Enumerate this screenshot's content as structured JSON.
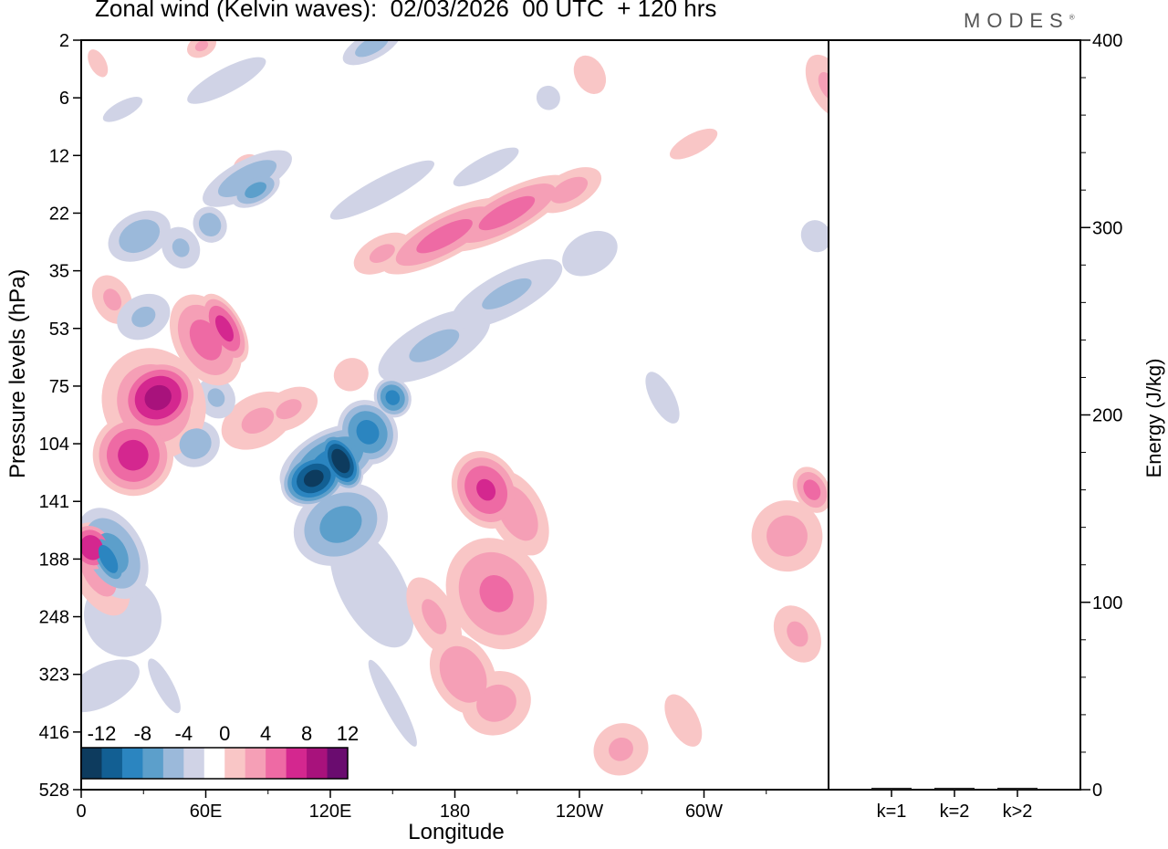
{
  "header": {
    "title": "Zonal wind (Kelvin waves):  02/03/2026  00 UTC  + 120 hrs",
    "brand": "MODES",
    "brand_mark": "®"
  },
  "chart_data": [
    {
      "type": "heatmap",
      "title": "Zonal wind (Kelvin waves):  02/03/2026  00 UTC  + 120 hrs",
      "xlabel": "Longitude",
      "ylabel": "Pressure levels (hPa)",
      "x_ticks": [
        "0",
        "60E",
        "120E",
        "180",
        "120W",
        "60W"
      ],
      "x_tick_values": [
        0,
        60,
        120,
        180,
        240,
        300
      ],
      "xlim": [
        0,
        360
      ],
      "y_ticks": [
        "2",
        "6",
        "12",
        "22",
        "35",
        "53",
        "75",
        "104",
        "141",
        "188",
        "248",
        "323",
        "416",
        "528"
      ],
      "colorbar": {
        "labels": [
          "-12",
          "-8",
          "-4",
          "0",
          "4",
          "8",
          "12"
        ],
        "levels": [
          -14,
          -12,
          -10,
          -8,
          -6,
          -4,
          -2,
          2,
          4,
          6,
          8,
          10,
          12,
          14
        ],
        "colors": [
          "#0d3b5e",
          "#125f93",
          "#2b85c0",
          "#5c9fcb",
          "#9bb9da",
          "#d0d3e6",
          "#ffffff",
          "#f9c6c6",
          "#f59fb6",
          "#ee6aa4",
          "#d4278f",
          "#a8127c",
          "#6a0c6f"
        ]
      },
      "blobs": [
        {
          "lon": 8,
          "lev": 9.2,
          "w": 16,
          "h": 2.2,
          "v": 5
        },
        {
          "lon": 5,
          "lev": 8.8,
          "w": 12,
          "h": 1.0,
          "v": 10
        },
        {
          "lon": 35,
          "lev": 6.3,
          "w": 30,
          "h": 2.4,
          "v": 6
        },
        {
          "lon": 37,
          "lev": 6.2,
          "w": 22,
          "h": 1.4,
          "v": 11
        },
        {
          "lon": 25,
          "lev": 7.2,
          "w": 22,
          "h": 1.6,
          "v": 9
        },
        {
          "lon": 60,
          "lev": 5.2,
          "w": 18,
          "h": 2.0,
          "v": 7
        },
        {
          "lon": 69,
          "lev": 5.0,
          "w": 10,
          "h": 1.5,
          "v": 9
        },
        {
          "lon": 85,
          "lev": 6.6,
          "w": 25,
          "h": 1.2,
          "v": 4.5
        },
        {
          "lon": 200,
          "lev": 9.6,
          "w": 28,
          "h": 2.4,
          "v": 6.5
        },
        {
          "lon": 195,
          "lev": 7.8,
          "w": 18,
          "h": 1.6,
          "v": 8.5
        },
        {
          "lon": 184,
          "lev": 11.0,
          "w": 18,
          "h": 1.8,
          "v": 6
        },
        {
          "lon": 200,
          "lev": 11.5,
          "w": 22,
          "h": 1.4,
          "v": 5
        },
        {
          "lon": 210,
          "lev": 8.2,
          "w": 16,
          "h": 2.0,
          "v": 5.5
        },
        {
          "lon": 170,
          "lev": 10.0,
          "w": 14,
          "h": 2.0,
          "v": 4.5
        },
        {
          "lon": 260,
          "lev": 12.3,
          "w": 18,
          "h": 1.2,
          "v": 4.5
        },
        {
          "lon": 290,
          "lev": 11.8,
          "w": 10,
          "h": 1.4,
          "v": 4
        },
        {
          "lon": 340,
          "lev": 8.6,
          "w": 22,
          "h": 1.6,
          "v": 5
        },
        {
          "lon": 352,
          "lev": 7.8,
          "w": 10,
          "h": 1.0,
          "v": 7
        },
        {
          "lon": 345,
          "lev": 10.3,
          "w": 14,
          "h": 1.4,
          "v": 4.5
        },
        {
          "lon": 175,
          "lev": 3.4,
          "w": 40,
          "h": 0.9,
          "v": 7
        },
        {
          "lon": 205,
          "lev": 3.0,
          "w": 40,
          "h": 0.9,
          "v": 7
        },
        {
          "lon": 235,
          "lev": 2.6,
          "w": 22,
          "h": 0.8,
          "v": 5
        },
        {
          "lon": 145,
          "lev": 3.7,
          "w": 20,
          "h": 0.8,
          "v": 4.5
        },
        {
          "lon": 130,
          "lev": 5.8,
          "w": 12,
          "h": 0.8,
          "v": 4
        },
        {
          "lon": 100,
          "lev": 6.4,
          "w": 20,
          "h": 0.9,
          "v": 4.5
        },
        {
          "lon": 15,
          "lev": 4.5,
          "w": 12,
          "h": 1.2,
          "v": 4.5
        },
        {
          "lon": 80,
          "lev": 2.2,
          "w": 10,
          "h": 0.6,
          "v": 4
        },
        {
          "lon": 245,
          "lev": 0.6,
          "w": 10,
          "h": 1.0,
          "v": 4
        },
        {
          "lon": 360,
          "lev": 0.8,
          "w": 12,
          "h": 1.6,
          "v": 4.5
        },
        {
          "lon": 295,
          "lev": 1.8,
          "w": 18,
          "h": 0.5,
          "v": 4
        },
        {
          "lon": 58,
          "lev": 0.1,
          "w": 10,
          "h": 0.5,
          "v": 4.5
        },
        {
          "lon": 8,
          "lev": 0.4,
          "w": 6,
          "h": 0.8,
          "v": 3.5
        },
        {
          "lon": 120,
          "lev": 7.3,
          "w": 30,
          "h": 1.2,
          "v": -9
        },
        {
          "lon": 112,
          "lev": 7.6,
          "w": 18,
          "h": 1.0,
          "v": -13
        },
        {
          "lon": 125,
          "lev": 7.3,
          "w": 10,
          "h": 1.2,
          "v": -14
        },
        {
          "lon": 138,
          "lev": 6.8,
          "w": 16,
          "h": 1.3,
          "v": -9
        },
        {
          "lon": 150,
          "lev": 6.2,
          "w": 10,
          "h": 0.8,
          "v": -9
        },
        {
          "lon": 125,
          "lev": 8.4,
          "w": 28,
          "h": 1.6,
          "v": -7
        },
        {
          "lon": 140,
          "lev": 9.5,
          "w": 22,
          "h": 3.2,
          "v": -4
        },
        {
          "lon": 170,
          "lev": 5.3,
          "w": 40,
          "h": 1.2,
          "v": -4.5
        },
        {
          "lon": 205,
          "lev": 4.4,
          "w": 40,
          "h": 1.0,
          "v": -4.5
        },
        {
          "lon": 245,
          "lev": 3.7,
          "w": 20,
          "h": 1.0,
          "v": -4
        },
        {
          "lon": 15,
          "lev": 8.9,
          "w": 18,
          "h": 2.0,
          "v": -7
        },
        {
          "lon": 13,
          "lev": 9.0,
          "w": 8,
          "h": 1.2,
          "v": -10
        },
        {
          "lon": 20,
          "lev": 10.0,
          "w": 26,
          "h": 2.0,
          "v": -4
        },
        {
          "lon": 10,
          "lev": 11.2,
          "w": 28,
          "h": 1.0,
          "v": -4
        },
        {
          "lon": 55,
          "lev": 7.0,
          "w": 15,
          "h": 1.0,
          "v": -5.5
        },
        {
          "lon": 65,
          "lev": 6.2,
          "w": 12,
          "h": 1.0,
          "v": -4.5
        },
        {
          "lon": 30,
          "lev": 4.8,
          "w": 18,
          "h": 1.0,
          "v": -4.5
        },
        {
          "lon": 28,
          "lev": 3.4,
          "w": 20,
          "h": 1.0,
          "v": -5.5
        },
        {
          "lon": 48,
          "lev": 3.6,
          "w": 12,
          "h": 1.0,
          "v": -4.5
        },
        {
          "lon": 80,
          "lev": 2.4,
          "w": 30,
          "h": 0.8,
          "v": -5.5
        },
        {
          "lon": 84,
          "lev": 2.6,
          "w": 15,
          "h": 0.6,
          "v": -7
        },
        {
          "lon": 62,
          "lev": 3.2,
          "w": 10,
          "h": 0.8,
          "v": -5.5
        },
        {
          "lon": 70,
          "lev": 0.7,
          "w": 30,
          "h": 0.6,
          "v": -4
        },
        {
          "lon": 140,
          "lev": 0.1,
          "w": 20,
          "h": 0.6,
          "v": -5
        },
        {
          "lon": 145,
          "lev": 2.6,
          "w": 40,
          "h": 0.6,
          "v": -4
        },
        {
          "lon": 195,
          "lev": 2.2,
          "w": 25,
          "h": 0.5,
          "v": -4
        },
        {
          "lon": 20,
          "lev": 1.2,
          "w": 15,
          "h": 0.4,
          "v": -4
        },
        {
          "lon": 354,
          "lev": 3.4,
          "w": 10,
          "h": 0.8,
          "v": -4
        },
        {
          "lon": 280,
          "lev": 6.2,
          "w": 8,
          "h": 1.4,
          "v": -4
        },
        {
          "lon": 150,
          "lev": 11.5,
          "w": 6,
          "h": 2.4,
          "v": -4
        },
        {
          "lon": 40,
          "lev": 11.2,
          "w": 6,
          "h": 1.5,
          "v": -4
        },
        {
          "lon": 225,
          "lev": 1.0,
          "w": 8,
          "h": 0.6,
          "v": -4
        }
      ]
    },
    {
      "type": "bar",
      "ylabel": "Energy (J/kg)",
      "categories": [
        "k=1",
        "k=2",
        "k>2"
      ],
      "values": [
        1,
        1,
        1
      ],
      "ylim": [
        0,
        400
      ],
      "y_ticks": [
        "0",
        "100",
        "200",
        "300",
        "400"
      ],
      "y_tick_values": [
        0,
        100,
        200,
        300,
        400
      ]
    }
  ]
}
